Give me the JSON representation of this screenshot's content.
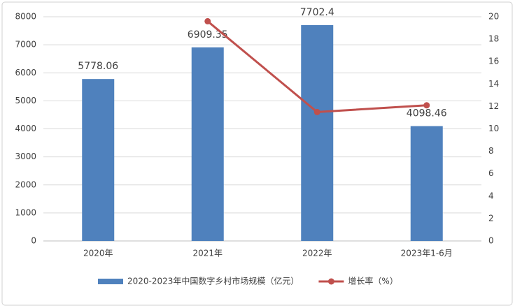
{
  "chart_data": {
    "type": "bar-line",
    "categories": [
      "2020年",
      "2021年",
      "2022年",
      "2023年1-6月"
    ],
    "series": [
      {
        "name": "2020-2023年中国数字乡村市场规模（亿元）",
        "type": "bar",
        "color": "#4f81bd",
        "values": [
          5778.06,
          6909.35,
          7702.4,
          4098.46
        ]
      },
      {
        "name": "增长率（%）",
        "type": "line",
        "axis": "y2",
        "color": "#c0504d",
        "values": [
          null,
          19.6,
          11.5,
          12.1
        ]
      }
    ],
    "ylim": [
      0,
      8000
    ],
    "yticks": [
      0,
      1000,
      2000,
      3000,
      4000,
      5000,
      6000,
      7000,
      8000
    ],
    "y2lim": [
      0,
      20
    ],
    "y2ticks": [
      0,
      2,
      4,
      6,
      8,
      10,
      12,
      14,
      16,
      18,
      20
    ],
    "grid": true,
    "legend": "bottom"
  }
}
